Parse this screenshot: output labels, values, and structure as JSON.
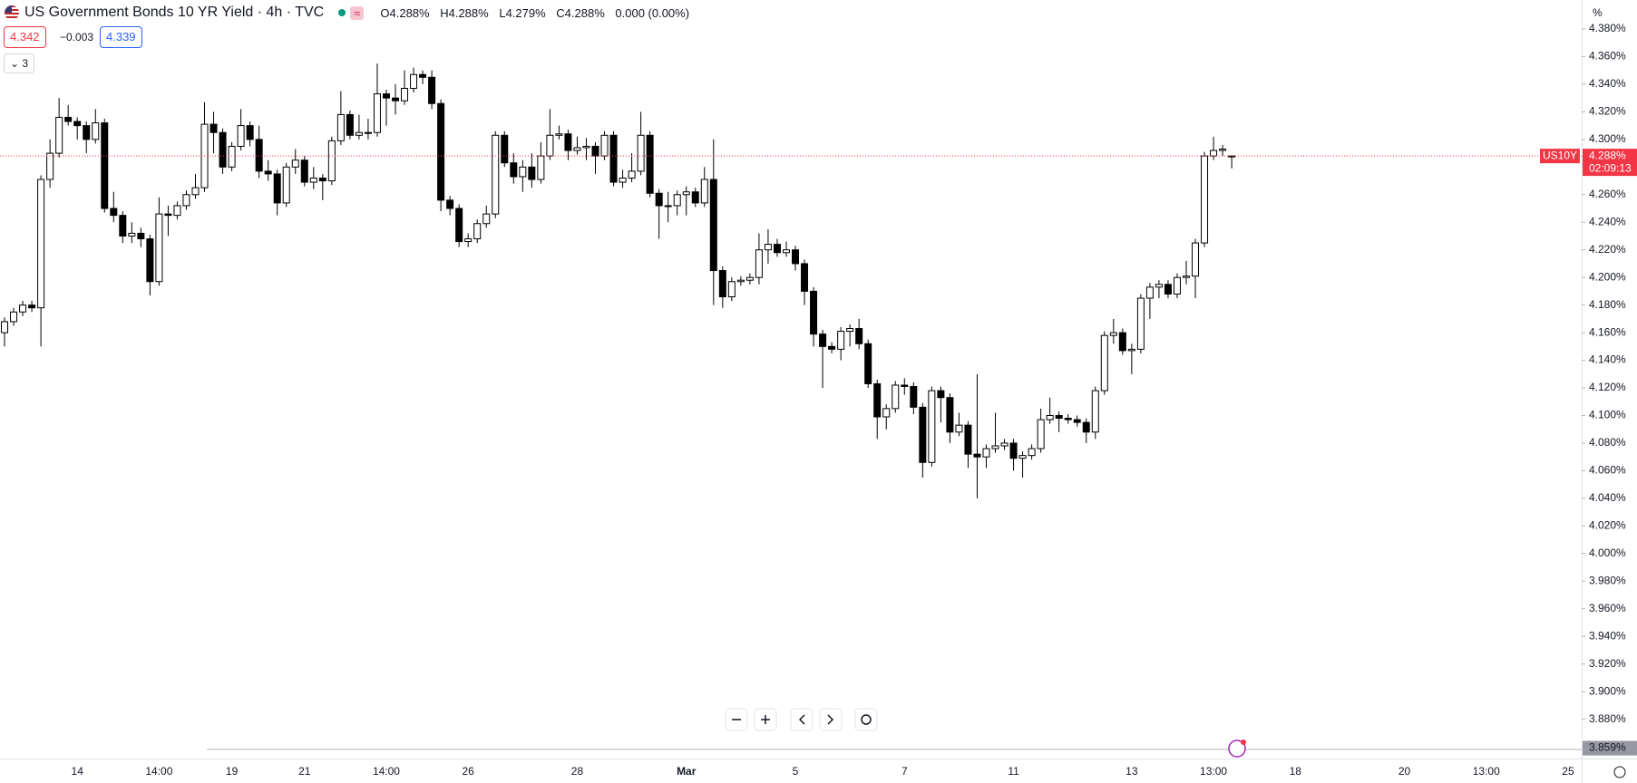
{
  "header": {
    "title": "US Government Bonds 10 YR Yield · 4h · TVC",
    "ohlc": [
      "O",
      "4.288%",
      "H",
      "4.288%",
      "L",
      "4.279%",
      "C",
      "4.288%"
    ],
    "change": "0.000 (0.00%)",
    "bid": "4.342",
    "spread": "−0.003",
    "ask": "4.339",
    "indicators": "3"
  },
  "chart_data": {
    "type": "candlestick",
    "categories": [
      null,
      null,
      null,
      null,
      null,
      null,
      null,
      null,
      "14",
      null,
      null,
      null,
      null,
      null,
      null,
      null,
      null,
      "14:00",
      null,
      null,
      null,
      null,
      null,
      null,
      null,
      "19",
      null,
      null,
      null,
      null,
      null,
      null,
      null,
      "21",
      null,
      null,
      null,
      null,
      null,
      null,
      null,
      null,
      "14:00",
      null,
      null,
      null,
      null,
      null,
      null,
      null,
      null,
      "26",
      null,
      null,
      null,
      null,
      null,
      null,
      null,
      null,
      null,
      null,
      null,
      "28",
      null,
      null,
      null,
      null,
      null,
      null,
      null,
      null,
      null,
      null,
      null,
      "Mar",
      null,
      null,
      null,
      null,
      null,
      null,
      null,
      null,
      null,
      null,
      null,
      "5",
      null,
      null,
      null,
      null,
      null,
      null,
      null,
      null,
      null,
      null,
      null,
      "7",
      null,
      null,
      null,
      null,
      null,
      null,
      null,
      null,
      null,
      null,
      null,
      "11",
      null,
      null,
      null,
      null,
      null,
      null,
      null,
      null,
      null,
      null,
      null,
      null,
      "13",
      null,
      null,
      null,
      null,
      null,
      null,
      null,
      null,
      "13:00",
      null,
      null,
      null,
      null,
      null,
      null,
      null,
      null,
      "18",
      null,
      null,
      null,
      null,
      null,
      null,
      null,
      null,
      null,
      null,
      null,
      "20",
      null,
      null,
      null,
      null,
      null,
      null,
      null,
      null,
      "13:00",
      null,
      null,
      null,
      null,
      null,
      null,
      null,
      null,
      "25",
      null
    ],
    "open": [
      4.16,
      4.168,
      4.175,
      4.18,
      4.178,
      4.271,
      4.29,
      4.316,
      4.313,
      4.31,
      4.3,
      4.312,
      4.25,
      4.245,
      4.23,
      4.232,
      4.228,
      4.197,
      4.246,
      4.245,
      4.252,
      4.26,
      4.265,
      4.311,
      4.305,
      4.28,
      4.295,
      4.31,
      4.3,
      4.277,
      4.275,
      4.254,
      4.28,
      4.285,
      4.269,
      4.272,
      4.27,
      4.299,
      4.318,
      4.303,
      4.305,
      4.305,
      4.333,
      4.33,
      4.328,
      4.337,
      4.347,
      4.345,
      4.326,
      4.256,
      4.25,
      4.226,
      4.228,
      4.239,
      4.246,
      4.303,
      4.283,
      4.273,
      4.28,
      4.271,
      4.288,
      4.303,
      4.304,
      4.292,
      4.294,
      4.295,
      4.288,
      4.303,
      4.269,
      4.272,
      4.277,
      4.303,
      4.261,
      4.252,
      4.252,
      4.26,
      4.262,
      4.254,
      4.271,
      4.205,
      4.186,
      4.197,
      4.198,
      4.2,
      4.22,
      4.224,
      4.218,
      4.22,
      4.21,
      4.19,
      4.159,
      4.15,
      4.148,
      4.161,
      4.163,
      4.152,
      4.123,
      4.099,
      4.105,
      4.122,
      4.121,
      4.106,
      4.066,
      4.118,
      4.113,
      4.088,
      4.093,
      4.072,
      4.07,
      4.076,
      4.078,
      4.08,
      4.069,
      4.071,
      4.076,
      4.097,
      4.1,
      4.098,
      4.097,
      4.095,
      4.088,
      4.118,
      4.158,
      4.16,
      4.147,
      4.148,
      4.185,
      4.193,
      4.195,
      4.188,
      4.2,
      4.201,
      4.225,
      4.288,
      4.292,
      4.288,
      null,
      null,
      null,
      null,
      null,
      null,
      null,
      null,
      null,
      null,
      null,
      null,
      null,
      null,
      null,
      null,
      null,
      null,
      null,
      null,
      null,
      null,
      null,
      null,
      null,
      null,
      null,
      null,
      null,
      null,
      null,
      null,
      null,
      null,
      null,
      null,
      null,
      null
    ],
    "high": [
      4.171,
      4.178,
      4.183,
      4.183,
      4.274,
      4.3,
      4.33,
      4.325,
      4.316,
      4.313,
      4.322,
      4.315,
      4.262,
      4.248,
      4.24,
      4.236,
      4.231,
      4.258,
      4.252,
      4.255,
      4.263,
      4.275,
      4.327,
      4.32,
      4.308,
      4.298,
      4.322,
      4.313,
      4.31,
      4.285,
      4.278,
      4.283,
      4.293,
      4.288,
      4.28,
      4.275,
      4.302,
      4.335,
      4.321,
      4.318,
      4.315,
      4.355,
      4.336,
      4.34,
      4.35,
      4.352,
      4.35,
      4.35,
      4.329,
      4.259,
      4.253,
      4.232,
      4.242,
      4.252,
      4.306,
      4.306,
      4.29,
      4.285,
      4.29,
      4.298,
      4.322,
      4.31,
      4.307,
      4.302,
      4.301,
      4.298,
      4.306,
      4.306,
      4.278,
      4.29,
      4.32,
      4.306,
      4.264,
      4.262,
      4.263,
      4.266,
      4.265,
      4.28,
      4.3,
      4.208,
      4.2,
      4.201,
      4.203,
      4.232,
      4.235,
      4.228,
      4.226,
      4.223,
      4.213,
      4.193,
      4.162,
      4.153,
      4.164,
      4.166,
      4.17,
      4.155,
      4.126,
      4.108,
      4.125,
      4.127,
      4.124,
      4.109,
      4.121,
      4.121,
      4.116,
      4.102,
      4.096,
      4.13,
      4.079,
      4.102,
      4.083,
      4.083,
      4.074,
      4.079,
      4.105,
      4.113,
      4.103,
      4.101,
      4.1,
      4.098,
      4.121,
      4.161,
      4.17,
      4.163,
      4.152,
      4.188,
      4.196,
      4.198,
      4.198,
      4.203,
      4.212,
      4.228,
      4.291,
      4.302,
      4.296,
      4.288,
      null,
      null,
      null,
      null,
      null,
      null,
      null,
      null,
      null,
      null,
      null,
      null,
      null,
      null,
      null,
      null,
      null,
      null,
      null,
      null,
      null,
      null,
      null,
      null,
      null,
      null,
      null,
      null,
      null,
      null,
      null,
      null,
      null,
      null,
      null,
      null,
      null,
      null
    ],
    "low": [
      4.15,
      4.165,
      4.172,
      4.175,
      4.15,
      4.265,
      4.287,
      4.31,
      4.3,
      4.29,
      4.297,
      4.247,
      4.24,
      4.225,
      4.225,
      4.222,
      4.187,
      4.194,
      4.23,
      4.242,
      4.249,
      4.257,
      4.262,
      4.29,
      4.275,
      4.277,
      4.292,
      4.295,
      4.272,
      4.27,
      4.245,
      4.251,
      4.275,
      4.266,
      4.264,
      4.256,
      4.267,
      4.296,
      4.3,
      4.3,
      4.3,
      4.302,
      4.31,
      4.318,
      4.325,
      4.334,
      4.34,
      4.322,
      4.248,
      4.245,
      4.222,
      4.222,
      4.225,
      4.236,
      4.243,
      4.28,
      4.268,
      4.262,
      4.265,
      4.268,
      4.285,
      4.3,
      4.285,
      4.289,
      4.285,
      4.275,
      4.285,
      4.266,
      4.265,
      4.269,
      4.274,
      4.258,
      4.228,
      4.24,
      4.245,
      4.245,
      4.251,
      4.251,
      4.18,
      4.178,
      4.183,
      4.194,
      4.195,
      4.195,
      4.21,
      4.215,
      4.215,
      4.205,
      4.18,
      4.15,
      4.12,
      4.145,
      4.14,
      4.15,
      4.148,
      4.12,
      4.083,
      4.09,
      4.102,
      4.115,
      4.101,
      4.055,
      4.063,
      4.095,
      4.08,
      4.085,
      4.062,
      4.04,
      4.062,
      4.073,
      4.075,
      4.06,
      4.055,
      4.068,
      4.073,
      4.094,
      4.088,
      4.094,
      4.092,
      4.08,
      4.083,
      4.115,
      4.152,
      4.144,
      4.13,
      4.145,
      4.17,
      4.185,
      4.185,
      4.185,
      4.195,
      4.185,
      4.222,
      4.285,
      4.288,
      4.279,
      null,
      null,
      null,
      null,
      null,
      null,
      null,
      null,
      null,
      null,
      null,
      null,
      null,
      null,
      null,
      null,
      null,
      null,
      null,
      null,
      null,
      null,
      null,
      null,
      null,
      null,
      null,
      null,
      null,
      null,
      null,
      null,
      null,
      null,
      null,
      null,
      null,
      null
    ],
    "close": [
      4.168,
      4.175,
      4.18,
      4.178,
      4.271,
      4.29,
      4.316,
      4.313,
      4.31,
      4.3,
      4.312,
      4.25,
      4.245,
      4.23,
      4.232,
      4.228,
      4.197,
      4.246,
      4.245,
      4.252,
      4.26,
      4.265,
      4.311,
      4.305,
      4.28,
      4.295,
      4.31,
      4.3,
      4.277,
      4.275,
      4.254,
      4.28,
      4.285,
      4.269,
      4.272,
      4.27,
      4.299,
      4.318,
      4.303,
      4.305,
      4.305,
      4.333,
      4.33,
      4.328,
      4.337,
      4.347,
      4.345,
      4.326,
      4.256,
      4.25,
      4.226,
      4.228,
      4.239,
      4.246,
      4.303,
      4.283,
      4.273,
      4.28,
      4.271,
      4.288,
      4.303,
      4.304,
      4.292,
      4.294,
      4.295,
      4.288,
      4.303,
      4.269,
      4.272,
      4.277,
      4.303,
      4.261,
      4.252,
      4.252,
      4.26,
      4.262,
      4.254,
      4.271,
      4.205,
      4.186,
      4.197,
      4.198,
      4.2,
      4.22,
      4.224,
      4.218,
      4.22,
      4.21,
      4.19,
      4.159,
      4.15,
      4.148,
      4.161,
      4.163,
      4.152,
      4.123,
      4.099,
      4.105,
      4.122,
      4.121,
      4.106,
      4.066,
      4.118,
      4.113,
      4.088,
      4.093,
      4.072,
      4.07,
      4.076,
      4.078,
      4.08,
      4.069,
      4.071,
      4.076,
      4.097,
      4.1,
      4.098,
      4.097,
      4.095,
      4.088,
      4.118,
      4.158,
      4.16,
      4.147,
      4.148,
      4.185,
      4.193,
      4.195,
      4.188,
      4.2,
      4.201,
      4.225,
      4.288,
      4.292,
      4.293,
      4.288,
      null,
      null,
      null,
      null,
      null,
      null,
      null,
      null,
      null,
      null,
      null,
      null,
      null,
      null,
      null,
      null,
      null,
      null,
      null,
      null,
      null,
      null,
      null,
      null,
      null,
      null,
      null,
      null,
      null,
      null,
      null,
      null,
      null,
      null,
      null,
      null,
      null,
      null
    ],
    "up_color": "#ffffff",
    "down_color": "#000000",
    "border_color": "#000000",
    "ylim": [
      3.8515,
      4.401
    ],
    "yticks": [
      {
        "value": 4.38,
        "label": "4.380%"
      },
      {
        "value": 4.36,
        "label": "4.360%"
      },
      {
        "value": 4.34,
        "label": "4.340%"
      },
      {
        "value": 4.32,
        "label": "4.320%"
      },
      {
        "value": 4.3,
        "label": "4.300%"
      },
      {
        "value": 4.28,
        "label": "4.280%"
      },
      {
        "value": 4.26,
        "label": "4.260%"
      },
      {
        "value": 4.24,
        "label": "4.240%"
      },
      {
        "value": 4.22,
        "label": "4.220%"
      },
      {
        "value": 4.2,
        "label": "4.200%"
      },
      {
        "value": 4.18,
        "label": "4.180%"
      },
      {
        "value": 4.16,
        "label": "4.160%"
      },
      {
        "value": 4.14,
        "label": "4.140%"
      },
      {
        "value": 4.12,
        "label": "4.120%"
      },
      {
        "value": 4.1,
        "label": "4.100%"
      },
      {
        "value": 4.08,
        "label": "4.080%"
      },
      {
        "value": 4.06,
        "label": "4.060%"
      },
      {
        "value": 4.04,
        "label": "4.040%"
      },
      {
        "value": 4.02,
        "label": "4.020%"
      },
      {
        "value": 4.0,
        "label": "4.000%"
      },
      {
        "value": 3.98,
        "label": "3.980%"
      },
      {
        "value": 3.96,
        "label": "3.960%"
      },
      {
        "value": 3.94,
        "label": "3.940%"
      },
      {
        "value": 3.92,
        "label": "3.920%"
      },
      {
        "value": 3.9,
        "label": "3.900%"
      },
      {
        "value": 3.88,
        "label": "3.880%"
      }
    ],
    "axis_unit": "%",
    "last_price": {
      "value": 4.288,
      "label": "4.288%"
    },
    "last_price_color": "#f23645",
    "symbol_tag": "US10Y",
    "countdown": "02:09:13",
    "cursor_price": {
      "value": 3.859,
      "label": "3.859%"
    }
  }
}
